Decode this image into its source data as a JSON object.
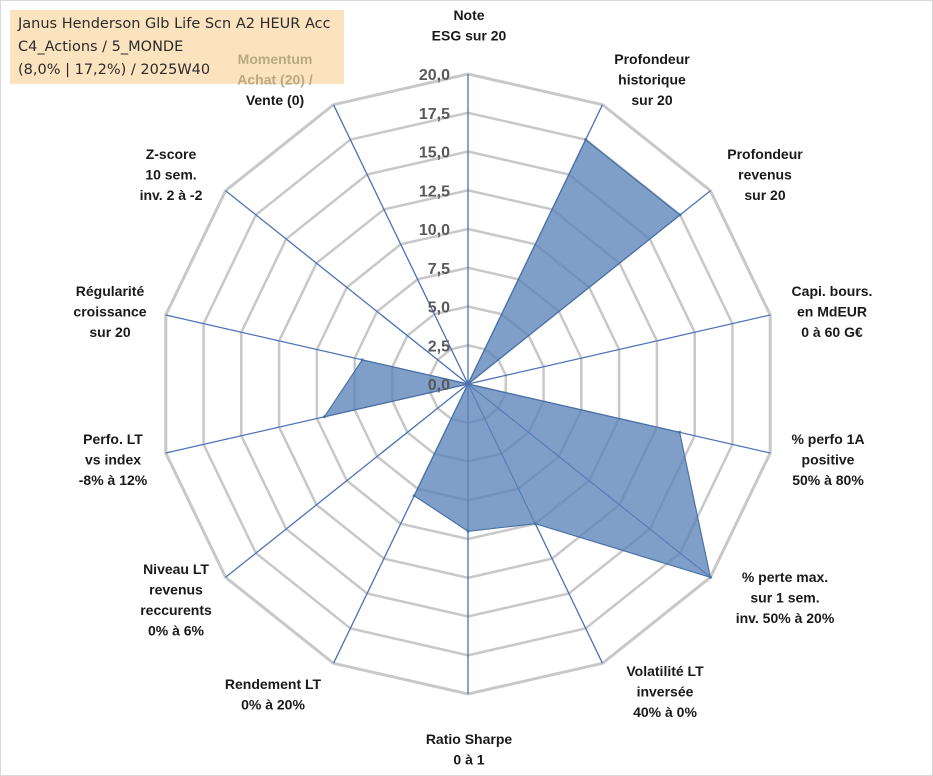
{
  "info": {
    "line1": "Janus Henderson Glb Life Scn A2 HEUR Acc",
    "line2": "C4_Actions / 5_MONDE",
    "line3": "(8,0% | 17,2%) / 2025W40"
  },
  "chart_data": {
    "type": "radar",
    "title": "",
    "range": [
      0,
      20
    ],
    "grid": true,
    "tick_labels": [
      "0,0",
      "2,5",
      "5,0",
      "7,5",
      "10,0",
      "12,5",
      "15,0",
      "17,5",
      "20,0"
    ],
    "axes": [
      {
        "lines": [
          "Note",
          "ESG sur 20"
        ]
      },
      {
        "lines": [
          "Profondeur",
          "historique",
          "sur 20"
        ]
      },
      {
        "lines": [
          "Profondeur",
          "revenus",
          "sur 20"
        ]
      },
      {
        "lines": [
          "Capi. bours.",
          "en MdEUR",
          "0 à 60 G€"
        ]
      },
      {
        "lines": [
          "% perfo 1A",
          "positive",
          "50% à 80%"
        ]
      },
      {
        "lines": [
          "% perte max.",
          "sur 1 sem.",
          "inv. 50% à 20%"
        ]
      },
      {
        "lines": [
          "Volatilité LT",
          "inversée",
          "40% à 0%"
        ]
      },
      {
        "lines": [
          "Ratio Sharpe",
          "0 à 1"
        ]
      },
      {
        "lines": [
          "Rendement LT",
          "0% à 20%"
        ]
      },
      {
        "lines": [
          "Niveau LT",
          "revenus",
          "reccurents",
          "0% à 6%"
        ]
      },
      {
        "lines": [
          "Perfo. LT",
          "vs index",
          "-8% à 12%"
        ]
      },
      {
        "lines": [
          "Régularité",
          "croissance",
          "sur 20"
        ]
      },
      {
        "lines": [
          "Z-score",
          "10 sem.",
          "inv. 2 à -2"
        ]
      },
      {
        "lines": [
          "Momentum",
          "Achat (20) /",
          "Vente (0)"
        ]
      }
    ],
    "series": [
      {
        "values": [
          0,
          17.5,
          17.5,
          0,
          14,
          20,
          10,
          9.5,
          8,
          0,
          9.5,
          7,
          0,
          0
        ]
      }
    ],
    "colors": {
      "fill": "#5b84b8",
      "fill_opacity": 0.78,
      "series_stroke": "#4a72a8",
      "grid": "#c8c8c8",
      "axis": "#4a72b8",
      "momentum_label": "#b8aa7e"
    }
  }
}
